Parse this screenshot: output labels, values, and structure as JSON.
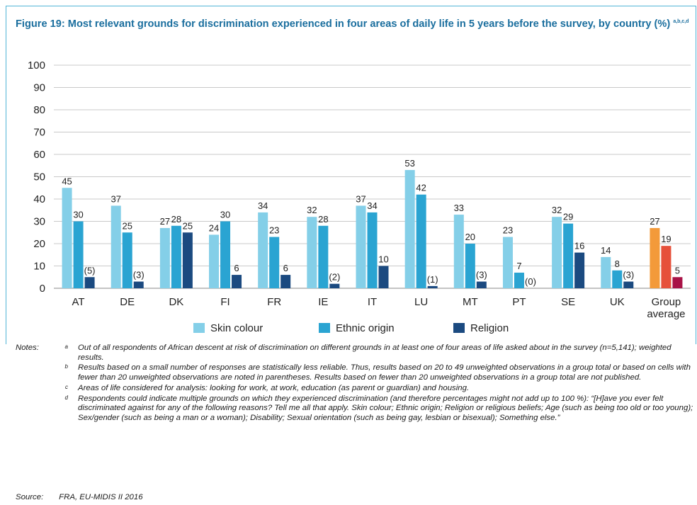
{
  "title": "Figure 19: Most relevant grounds for discrimination experienced in four areas of daily life in 5 years before the survey, by country (%)",
  "title_superscript": "a,b,c,d",
  "chart_data": {
    "type": "bar",
    "categories": [
      "AT",
      "DE",
      "DK",
      "FI",
      "FR",
      "IE",
      "IT",
      "LU",
      "MT",
      "PT",
      "SE",
      "UK",
      "Group average"
    ],
    "category_lines": [
      [
        "AT"
      ],
      [
        "DE"
      ],
      [
        "DK"
      ],
      [
        "FI"
      ],
      [
        "FR"
      ],
      [
        "IE"
      ],
      [
        "IT"
      ],
      [
        "LU"
      ],
      [
        "MT"
      ],
      [
        "PT"
      ],
      [
        "SE"
      ],
      [
        "UK"
      ],
      [
        "Group",
        "average"
      ]
    ],
    "yticks": [
      "0",
      "10",
      "20",
      "30",
      "40",
      "50",
      "60",
      "70",
      "80",
      "90",
      "100"
    ],
    "ylim": [
      0,
      100
    ],
    "series": [
      {
        "name": "Skin colour",
        "color": "#84cfe8",
        "values": [
          45,
          37,
          27,
          24,
          34,
          32,
          37,
          53,
          33,
          23,
          32,
          14,
          27
        ],
        "labels": [
          "45",
          "37",
          "27",
          "24",
          "34",
          "32",
          "37",
          "53",
          "33",
          "23",
          "32",
          "14",
          "27"
        ]
      },
      {
        "name": "Ethnic origin",
        "color": "#2aa4d2",
        "values": [
          30,
          25,
          28,
          30,
          23,
          28,
          34,
          42,
          20,
          7,
          29,
          8,
          19
        ],
        "labels": [
          "30",
          "25",
          "28",
          "30",
          "23",
          "28",
          "34",
          "42",
          "20",
          "7",
          "29",
          "8",
          "19"
        ]
      },
      {
        "name": "Religion",
        "color": "#1b4a80",
        "values": [
          5,
          3,
          25,
          6,
          6,
          2,
          10,
          1,
          3,
          0,
          16,
          3,
          5
        ],
        "labels": [
          "(5)",
          "(3)",
          "25",
          "6",
          "6",
          "(2)",
          "10",
          "(1)",
          "(3)",
          "(0)",
          "16",
          "(3)",
          "5"
        ]
      }
    ],
    "highlight_colors": [
      "#f39a3a",
      "#e6503a",
      "#a81246"
    ],
    "grid": true,
    "legend_position": "bottom"
  },
  "notes_label": "Notes:",
  "notes": [
    {
      "mark": "a",
      "text": "Out of all respondents of African descent at risk of discrimination on different grounds in at least one of four areas of life asked about in the survey (n=5,141); weighted results."
    },
    {
      "mark": "b",
      "text": "Results based on a small number of responses are statistically less reliable. Thus, results based on 20 to 49 unweighted observations in a group total or based on cells with fewer than 20 unweighted observations are noted in parentheses. Results based on fewer than 20 unweighted observations in a group total are not published."
    },
    {
      "mark": "c",
      "text": "Areas of life considered for analysis: looking for work, at work, education (as parent or guardian) and housing."
    },
    {
      "mark": "d",
      "text": "Respondents could indicate multiple grounds on which they experienced discrimination (and therefore percentages might not add up to 100 %): “[H]ave you ever felt discriminated against for any of the following reasons? Tell me all that apply. Skin colour; Ethnic origin; Religion or religious beliefs; Age (such as being too old or too young); Sex/gender (such as being a man or a woman); Disability; Sexual orientation (such as being gay, lesbian or bisexual); Something else.”"
    }
  ],
  "source_label": "Source:",
  "source_text": "FRA, EU-MIDIS II 2016"
}
